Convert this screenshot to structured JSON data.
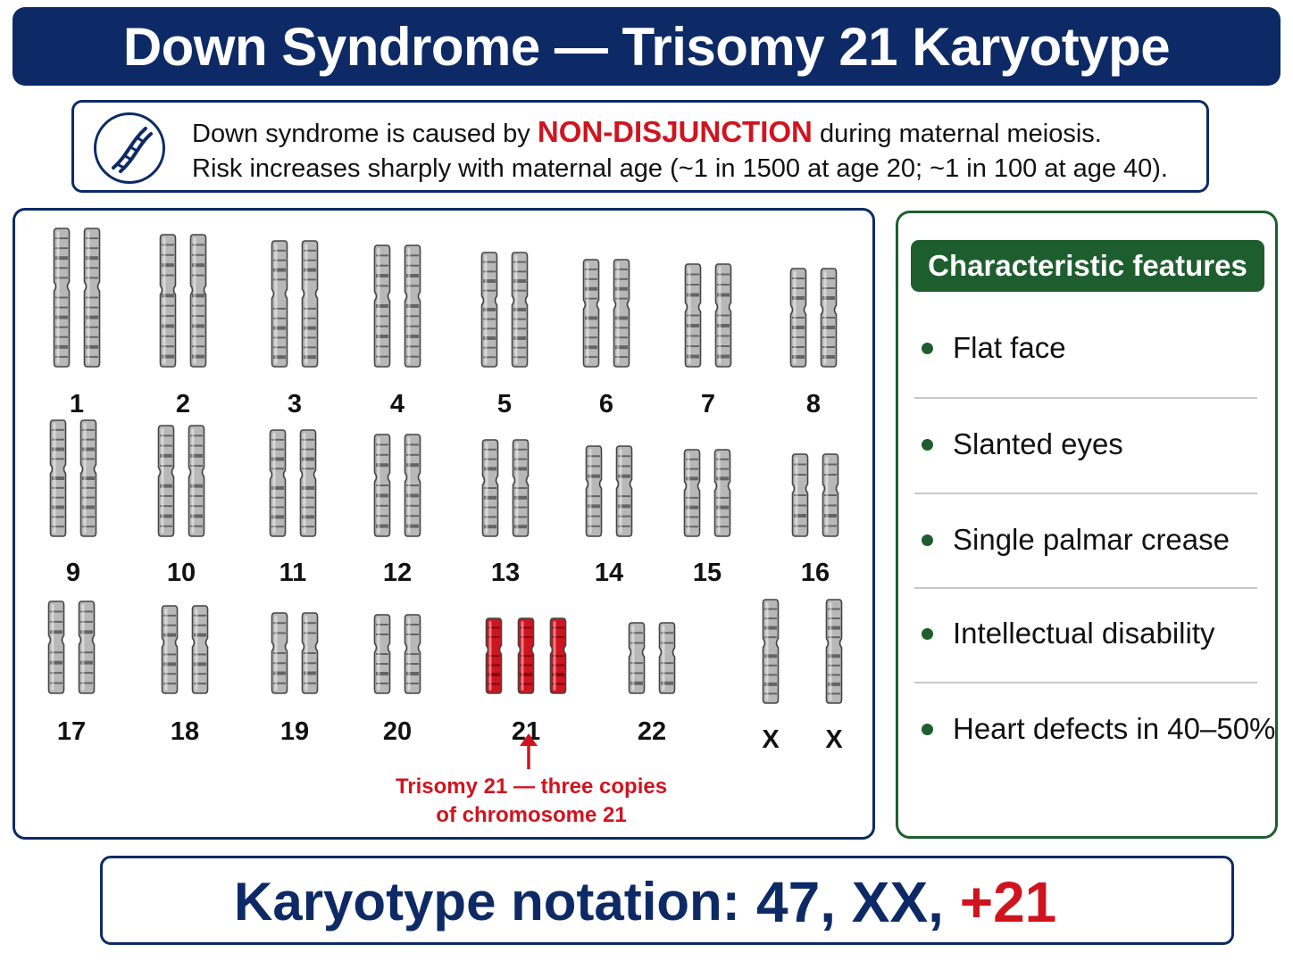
{
  "title": "Down Syndrome — Trisomy 21 Karyotype",
  "info": {
    "icon": "dna-icon",
    "line1_before": "Down syndrome is caused by",
    "line1_highlight": "NON-DISJUNCTION",
    "line1_after": "during maternal meiosis.",
    "line2": "Risk increases sharply with maternal age (~1 in 1500 at age 20; ~1 in 100 at age 40)."
  },
  "karyotype": {
    "normal_color": "#b8b8b8",
    "trisomy_color": "#d0141f",
    "chromosomes": [
      {
        "label": "1",
        "copies": 2
      },
      {
        "label": "2",
        "copies": 2
      },
      {
        "label": "3",
        "copies": 2
      },
      {
        "label": "4",
        "copies": 2
      },
      {
        "label": "5",
        "copies": 2
      },
      {
        "label": "6",
        "copies": 2
      },
      {
        "label": "7",
        "copies": 2
      },
      {
        "label": "8",
        "copies": 2
      },
      {
        "label": "9",
        "copies": 2
      },
      {
        "label": "10",
        "copies": 2
      },
      {
        "label": "11",
        "copies": 2
      },
      {
        "label": "12",
        "copies": 2
      },
      {
        "label": "13",
        "copies": 2
      },
      {
        "label": "14",
        "copies": 2
      },
      {
        "label": "15",
        "copies": 2
      },
      {
        "label": "16",
        "copies": 2
      },
      {
        "label": "17",
        "copies": 2
      },
      {
        "label": "18",
        "copies": 2
      },
      {
        "label": "19",
        "copies": 2
      },
      {
        "label": "20",
        "copies": 2
      },
      {
        "label": "21",
        "copies": 3,
        "highlight": true
      },
      {
        "label": "22",
        "copies": 2
      },
      {
        "label": "X",
        "copies": 1
      },
      {
        "label": "X",
        "copies": 1
      }
    ],
    "annotation_line1": "Trisomy 21 — three copies",
    "annotation_line2": "of chromosome 21"
  },
  "features": {
    "header": "Characteristic features",
    "items": [
      "Flat face",
      "Slanted eyes",
      "Single palmar crease",
      "Intellectual disability",
      "Heart defects in 40–50%"
    ]
  },
  "notation": {
    "label": "Karyotype notation:",
    "value": "47, XX,",
    "extra": "+21"
  }
}
